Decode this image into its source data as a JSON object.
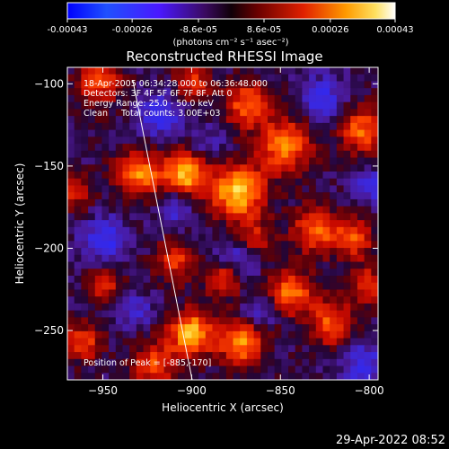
{
  "colorbar": {
    "tick_labels": [
      "-0.00043",
      "-0.00026",
      "-8.6e-05",
      "8.6e-05",
      "0.00026",
      "0.00043"
    ],
    "tick_values": [
      -0.00043,
      -0.00026,
      -8.6e-05,
      8.6e-05,
      0.00026,
      0.00043
    ],
    "range": [
      -0.00043,
      0.00043
    ],
    "units_label": "(photons cm⁻² s⁻¹ asec⁻²)"
  },
  "image": {
    "title": "Reconstructed RHESSI Image",
    "annotations": [
      "18-Apr-2005 06:34:28.000 to 06:36:48.000",
      "Detectors: 3F 4F 5F 6F 7F 8F, Att 0",
      "Energy Range: 25.0 - 50.0 keV",
      "Clean     Total counts: 3.00E+03"
    ],
    "peak_label": "Position of Peak = [-885,-170]",
    "xlabel": "Heliocentric X (arcsec)",
    "ylabel": "Heliocentric Y (arcsec)",
    "x_ticks": [
      -950,
      -900,
      -850,
      -800
    ],
    "y_ticks": [
      -100,
      -150,
      -200,
      -250
    ],
    "xlim": [
      -970,
      -795
    ],
    "ylim": [
      -280,
      -90
    ],
    "x_tick_labels": [
      "−950",
      "−900",
      "−850",
      "−800"
    ],
    "y_tick_labels": [
      "−100",
      "−150",
      "−200",
      "−250"
    ]
  },
  "footer": {
    "timestamp": "29-Apr-2022 08:52"
  },
  "colors": {
    "background": "#000000",
    "text": "#ffffff"
  }
}
